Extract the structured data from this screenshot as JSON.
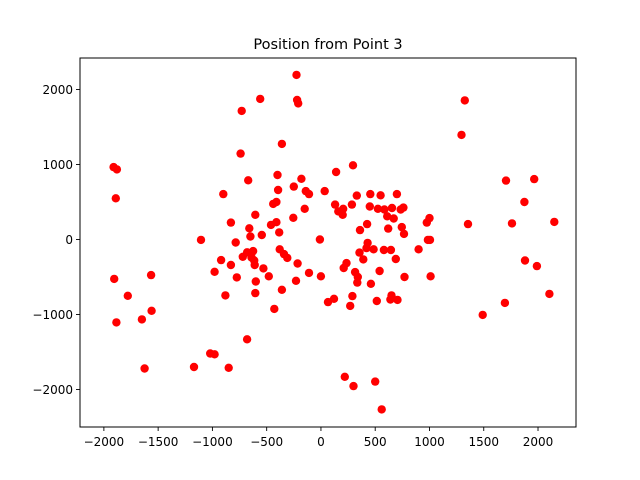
{
  "chart_data": {
    "type": "scatter",
    "title": "Position from Point 3",
    "xlabel": "",
    "ylabel": "",
    "xlim": [
      -2220,
      2350
    ],
    "ylim": [
      -2500,
      2420
    ],
    "xticks": [
      -2000,
      -1500,
      -1000,
      -500,
      0,
      500,
      1000,
      1500,
      2000
    ],
    "yticks": [
      -2000,
      -1000,
      0,
      1000,
      2000
    ],
    "xtick_labels": [
      "−2000",
      "−1500",
      "−1000",
      "−500",
      "0",
      "500",
      "1000",
      "1500",
      "2000"
    ],
    "ytick_labels": [
      "−2000",
      "−1000",
      "0",
      "1000",
      "2000"
    ],
    "grid": false,
    "marker_color": "#ff0000",
    "series": [
      {
        "points": [
          [
            -1910,
            965
          ],
          [
            -1880,
            935
          ],
          [
            -1890,
            550
          ],
          [
            -1905,
            -525
          ],
          [
            -1885,
            -1105
          ],
          [
            -1780,
            -750
          ],
          [
            -1650,
            -1065
          ],
          [
            -1625,
            -1720
          ],
          [
            -1565,
            -475
          ],
          [
            -1560,
            -950
          ],
          [
            -1170,
            -1700
          ],
          [
            -1105,
            -5
          ],
          [
            -1020,
            -1520
          ],
          [
            -980,
            -1530
          ],
          [
            -980,
            -430
          ],
          [
            -920,
            -275
          ],
          [
            -900,
            605
          ],
          [
            -880,
            -745
          ],
          [
            -850,
            -1710
          ],
          [
            -830,
            -340
          ],
          [
            -830,
            225
          ],
          [
            -785,
            -40
          ],
          [
            -775,
            -505
          ],
          [
            -740,
            1145
          ],
          [
            -730,
            1715
          ],
          [
            -720,
            -230
          ],
          [
            -680,
            -170
          ],
          [
            -680,
            -1330
          ],
          [
            -670,
            790
          ],
          [
            -660,
            150
          ],
          [
            -650,
            40
          ],
          [
            -640,
            -240
          ],
          [
            -625,
            -155
          ],
          [
            -615,
            -280
          ],
          [
            -610,
            -340
          ],
          [
            -605,
            330
          ],
          [
            -600,
            -560
          ],
          [
            -605,
            -715
          ],
          [
            -560,
            1875
          ],
          [
            -545,
            60
          ],
          [
            -530,
            -385
          ],
          [
            -480,
            -490
          ],
          [
            -460,
            195
          ],
          [
            -430,
            -925
          ],
          [
            -440,
            475
          ],
          [
            -410,
            500
          ],
          [
            -410,
            230
          ],
          [
            -400,
            860
          ],
          [
            -395,
            660
          ],
          [
            -385,
            95
          ],
          [
            -380,
            -130
          ],
          [
            -360,
            -670
          ],
          [
            -360,
            1275
          ],
          [
            -340,
            -195
          ],
          [
            -310,
            -245
          ],
          [
            -255,
            290
          ],
          [
            -250,
            705
          ],
          [
            -230,
            -550
          ],
          [
            -225,
            2195
          ],
          [
            -220,
            1860
          ],
          [
            -215,
            -320
          ],
          [
            -210,
            1815
          ],
          [
            -180,
            810
          ],
          [
            -150,
            410
          ],
          [
            -140,
            645
          ],
          [
            -110,
            605
          ],
          [
            -110,
            -445
          ],
          [
            -10,
            0
          ],
          [
            0,
            -490
          ],
          [
            35,
            645
          ],
          [
            65,
            -835
          ],
          [
            120,
            -790
          ],
          [
            130,
            465
          ],
          [
            140,
            900
          ],
          [
            160,
            375
          ],
          [
            200,
            330
          ],
          [
            205,
            410
          ],
          [
            210,
            -380
          ],
          [
            220,
            -1830
          ],
          [
            235,
            -315
          ],
          [
            270,
            -885
          ],
          [
            285,
            465
          ],
          [
            290,
            -755
          ],
          [
            295,
            990
          ],
          [
            300,
            -1955
          ],
          [
            315,
            -435
          ],
          [
            330,
            585
          ],
          [
            335,
            -575
          ],
          [
            340,
            -500
          ],
          [
            355,
            -175
          ],
          [
            360,
            125
          ],
          [
            390,
            -265
          ],
          [
            420,
            -115
          ],
          [
            425,
            205
          ],
          [
            430,
            -45
          ],
          [
            450,
            440
          ],
          [
            455,
            605
          ],
          [
            460,
            -590
          ],
          [
            485,
            -130
          ],
          [
            500,
            -1895
          ],
          [
            515,
            -820
          ],
          [
            525,
            410
          ],
          [
            540,
            -420
          ],
          [
            550,
            590
          ],
          [
            560,
            -2265
          ],
          [
            580,
            -140
          ],
          [
            585,
            400
          ],
          [
            610,
            310
          ],
          [
            620,
            145
          ],
          [
            640,
            -800
          ],
          [
            645,
            -140
          ],
          [
            650,
            -745
          ],
          [
            655,
            420
          ],
          [
            670,
            280
          ],
          [
            690,
            -260
          ],
          [
            700,
            605
          ],
          [
            705,
            -805
          ],
          [
            735,
            400
          ],
          [
            745,
            165
          ],
          [
            760,
            425
          ],
          [
            765,
            75
          ],
          [
            770,
            -500
          ],
          [
            900,
            -130
          ],
          [
            975,
            225
          ],
          [
            985,
            -5
          ],
          [
            1000,
            285
          ],
          [
            1005,
            -5
          ],
          [
            1010,
            -490
          ],
          [
            1295,
            1395
          ],
          [
            1325,
            1855
          ],
          [
            1355,
            205
          ],
          [
            1490,
            -1005
          ],
          [
            1695,
            -845
          ],
          [
            1705,
            785
          ],
          [
            1760,
            215
          ],
          [
            1875,
            500
          ],
          [
            1880,
            -280
          ],
          [
            1965,
            805
          ],
          [
            1990,
            -355
          ],
          [
            2105,
            -725
          ],
          [
            2150,
            235
          ]
        ]
      }
    ]
  }
}
